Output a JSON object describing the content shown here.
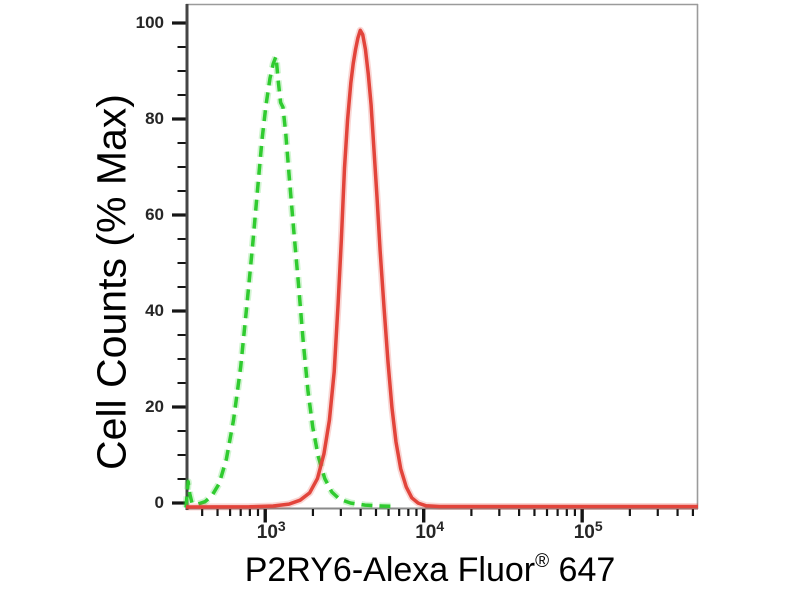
{
  "chart_data": {
    "type": "line",
    "chart_kind": "flow-cytometry-histogram",
    "title": "",
    "ylabel": "Cell Counts (% Max)",
    "xlabel": "P2RY6-Alexa Fluor® 647",
    "xlabel_parts": {
      "pre": "P2RY6-Alexa Fluor",
      "registered": "®",
      "post": " 647"
    },
    "x_scale": "log10",
    "grid": "off",
    "legend": "none",
    "x_axis": {
      "range_log10": [
        2.5,
        5.731
      ],
      "major_ticks": [
        {
          "log10": 3,
          "base": "10",
          "exponent": "3"
        },
        {
          "log10": 4,
          "base": "10",
          "exponent": "4"
        },
        {
          "log10": 5,
          "base": "10",
          "exponent": "5"
        }
      ],
      "minor_tick_multiples": [
        2,
        3,
        4,
        5,
        6,
        7,
        8,
        9
      ]
    },
    "y_axis": {
      "range": [
        0,
        100
      ],
      "major_ticks": [
        {
          "value": 0,
          "label": "0"
        },
        {
          "value": 20,
          "label": "20"
        },
        {
          "value": 40,
          "label": "40"
        },
        {
          "value": 60,
          "label": "60"
        },
        {
          "value": 80,
          "label": "80"
        },
        {
          "value": 100,
          "label": "100"
        }
      ],
      "minor_tick_step": 5
    },
    "series": [
      {
        "name": "green-dashed",
        "line_style": "dashed",
        "color": "#2fcb2f",
        "peak_log10x": 3.07,
        "peak_percent": 93,
        "points": [
          [
            2.5,
            0
          ],
          [
            2.506,
            2.5
          ],
          [
            2.514,
            5.3
          ],
          [
            2.524,
            2.8
          ],
          [
            2.538,
            0.9
          ],
          [
            2.575,
            0.7
          ],
          [
            2.62,
            1.2
          ],
          [
            2.665,
            2.5
          ],
          [
            2.71,
            5
          ],
          [
            2.755,
            10
          ],
          [
            2.8,
            18
          ],
          [
            2.845,
            29
          ],
          [
            2.885,
            42
          ],
          [
            2.92,
            54
          ],
          [
            2.95,
            65
          ],
          [
            2.98,
            76
          ],
          [
            3.005,
            83
          ],
          [
            3.03,
            88.5
          ],
          [
            3.05,
            91.5
          ],
          [
            3.068,
            93
          ],
          [
            3.082,
            88
          ],
          [
            3.097,
            83.5
          ],
          [
            3.112,
            82.5
          ],
          [
            3.13,
            77
          ],
          [
            3.152,
            68
          ],
          [
            3.18,
            57
          ],
          [
            3.21,
            46
          ],
          [
            3.24,
            34
          ],
          [
            3.27,
            24
          ],
          [
            3.3,
            16.5
          ],
          [
            3.335,
            10.5
          ],
          [
            3.375,
            6
          ],
          [
            3.42,
            3.2
          ],
          [
            3.47,
            1.7
          ],
          [
            3.54,
            0.9
          ],
          [
            3.63,
            0.5
          ],
          [
            3.73,
            0.3
          ],
          [
            3.83,
            0.2
          ]
        ]
      },
      {
        "name": "red-solid",
        "line_style": "solid",
        "color": "#e2443b",
        "peak_log10x": 3.6,
        "peak_percent": 98.4,
        "points": [
          [
            2.5,
            0.1
          ],
          [
            2.9,
            0.15
          ],
          [
            3.05,
            0.3
          ],
          [
            3.15,
            0.7
          ],
          [
            3.22,
            1.5
          ],
          [
            3.28,
            3
          ],
          [
            3.33,
            6
          ],
          [
            3.37,
            11
          ],
          [
            3.405,
            18
          ],
          [
            3.435,
            28
          ],
          [
            3.46,
            42
          ],
          [
            3.48,
            55
          ],
          [
            3.5,
            70
          ],
          [
            3.52,
            80
          ],
          [
            3.54,
            87.5
          ],
          [
            3.555,
            91.5
          ],
          [
            3.57,
            94.5
          ],
          [
            3.585,
            96.8
          ],
          [
            3.6,
            98.4
          ],
          [
            3.615,
            97.5
          ],
          [
            3.632,
            94.5
          ],
          [
            3.65,
            89.5
          ],
          [
            3.668,
            83
          ],
          [
            3.686,
            74
          ],
          [
            3.705,
            64
          ],
          [
            3.725,
            53
          ],
          [
            3.75,
            41
          ],
          [
            3.775,
            30
          ],
          [
            3.8,
            20.5
          ],
          [
            3.825,
            13.5
          ],
          [
            3.855,
            8
          ],
          [
            3.89,
            4.2
          ],
          [
            3.925,
            2
          ],
          [
            3.965,
            0.9
          ],
          [
            4.015,
            0.35
          ],
          [
            4.1,
            0.2
          ],
          [
            4.5,
            0.2
          ],
          [
            5.0,
            0.2
          ],
          [
            5.5,
            0.2
          ],
          [
            5.731,
            0.2
          ]
        ]
      }
    ],
    "colors": {
      "background": "#ffffff",
      "plot_border": "#9b9b9b",
      "x_baseline": "#8a8a8a",
      "y_axis_line": "#454545",
      "tick": "#151515",
      "tick_label": "#262626",
      "axis_title": "#000000"
    }
  }
}
